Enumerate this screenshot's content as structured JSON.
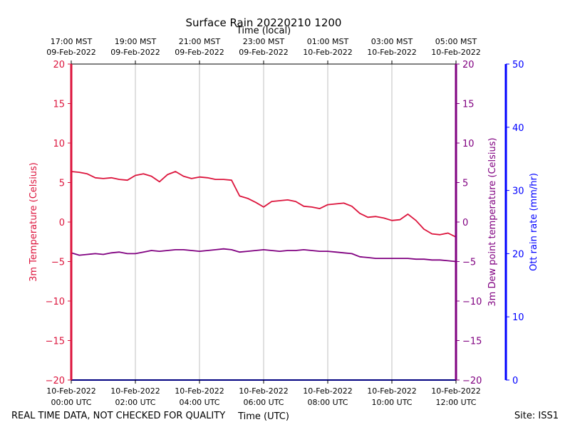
{
  "chart_data": {
    "type": "line",
    "title": "Surface Rain 20220210 1200",
    "top_axis_label": "Time (local)",
    "xlabel": "Time (UTC)",
    "footer_left": "REAL TIME DATA, NOT CHECKED FOR QUALITY",
    "footer_right": "Site: ISS1",
    "x_range_utc": [
      "10-Feb-2022 00:00",
      "10-Feb-2022 12:00"
    ],
    "grid": "vertical",
    "x_ticks_utc": [
      {
        "l1": "10-Feb-2022",
        "l2": "00:00 UTC"
      },
      {
        "l1": "10-Feb-2022",
        "l2": "02:00 UTC"
      },
      {
        "l1": "10-Feb-2022",
        "l2": "04:00 UTC"
      },
      {
        "l1": "10-Feb-2022",
        "l2": "06:00 UTC"
      },
      {
        "l1": "10-Feb-2022",
        "l2": "08:00 UTC"
      },
      {
        "l1": "10-Feb-2022",
        "l2": "10:00 UTC"
      },
      {
        "l1": "10-Feb-2022",
        "l2": "12:00 UTC"
      }
    ],
    "x_ticks_local": [
      {
        "l1": "17:00 MST",
        "l2": "09-Feb-2022"
      },
      {
        "l1": "19:00 MST",
        "l2": "09-Feb-2022"
      },
      {
        "l1": "21:00 MST",
        "l2": "09-Feb-2022"
      },
      {
        "l1": "23:00 MST",
        "l2": "09-Feb-2022"
      },
      {
        "l1": "01:00 MST",
        "l2": "10-Feb-2022"
      },
      {
        "l1": "03:00 MST",
        "l2": "10-Feb-2022"
      },
      {
        "l1": "05:00 MST",
        "l2": "10-Feb-2022"
      }
    ],
    "axes": {
      "left": {
        "label": "3m Temperature (Celsius)",
        "ylim": [
          -20,
          20
        ],
        "ticks": [
          "−20",
          "−15",
          "−10",
          "−5",
          "0",
          "5",
          "10",
          "15",
          "20"
        ],
        "color": "#dc143c"
      },
      "right1": {
        "label": "3m Dew point temperature (Celsius)",
        "ylim": [
          -20,
          20
        ],
        "ticks": [
          "−20",
          "−15",
          "−10",
          "−5",
          "0",
          "5",
          "10",
          "15",
          "20"
        ],
        "color": "#800080"
      },
      "right2": {
        "label": "Ott rain rate (mm/hr)",
        "ylim": [
          0,
          50
        ],
        "ticks": [
          "0",
          "10",
          "20",
          "30",
          "40",
          "50"
        ],
        "color": "#0000ff"
      }
    },
    "series": [
      {
        "axis": "left",
        "color": "#dc143c",
        "x_hours_utc": [
          0,
          0.25,
          0.5,
          0.75,
          1.0,
          1.25,
          1.5,
          1.75,
          2.0,
          2.25,
          2.5,
          2.75,
          3.0,
          3.25,
          3.5,
          3.75,
          4.0,
          4.25,
          4.5,
          4.75,
          5.0,
          5.25,
          5.5,
          5.75,
          6.0,
          6.25,
          6.5,
          6.75,
          7.0,
          7.25,
          7.5,
          7.75,
          8.0,
          8.25,
          8.5,
          8.75,
          9.0,
          9.25,
          9.5,
          9.75,
          10.0,
          10.25,
          10.5,
          10.75,
          11.0,
          11.25,
          11.5,
          11.75,
          12.0
        ],
        "y": [
          6.4,
          6.3,
          6.1,
          5.6,
          5.5,
          5.6,
          5.4,
          5.3,
          5.9,
          6.1,
          5.8,
          5.1,
          6.0,
          6.4,
          5.8,
          5.5,
          5.7,
          5.6,
          5.4,
          5.4,
          5.3,
          3.3,
          3.0,
          2.5,
          1.9,
          2.6,
          2.7,
          2.8,
          2.6,
          2.0,
          1.9,
          1.7,
          2.2,
          2.3,
          2.4,
          2.0,
          1.1,
          0.6,
          0.7,
          0.5,
          0.2,
          0.3,
          1.0,
          0.2,
          -0.9,
          -1.5,
          -1.6,
          -1.4,
          -1.9
        ]
      },
      {
        "axis": "right1",
        "color": "#800080",
        "x_hours_utc": [
          0,
          0.25,
          0.5,
          0.75,
          1.0,
          1.25,
          1.5,
          1.75,
          2.0,
          2.25,
          2.5,
          2.75,
          3.0,
          3.25,
          3.5,
          3.75,
          4.0,
          4.25,
          4.5,
          4.75,
          5.0,
          5.25,
          5.5,
          5.75,
          6.0,
          6.25,
          6.5,
          6.75,
          7.0,
          7.25,
          7.5,
          7.75,
          8.0,
          8.25,
          8.5,
          8.75,
          9.0,
          9.25,
          9.5,
          9.75,
          10.0,
          10.25,
          10.5,
          10.75,
          11.0,
          11.25,
          11.5,
          11.75,
          12.0
        ],
        "y": [
          -3.9,
          -4.2,
          -4.1,
          -4.0,
          -4.1,
          -3.9,
          -3.8,
          -4.0,
          -4.0,
          -3.8,
          -3.6,
          -3.7,
          -3.6,
          -3.5,
          -3.5,
          -3.6,
          -3.7,
          -3.6,
          -3.5,
          -3.4,
          -3.5,
          -3.8,
          -3.7,
          -3.6,
          -3.5,
          -3.6,
          -3.7,
          -3.6,
          -3.6,
          -3.5,
          -3.6,
          -3.7,
          -3.7,
          -3.8,
          -3.9,
          -4.0,
          -4.4,
          -4.5,
          -4.6,
          -4.6,
          -4.6,
          -4.6,
          -4.6,
          -4.7,
          -4.7,
          -4.8,
          -4.8,
          -4.9,
          -5.0
        ]
      },
      {
        "axis": "right2",
        "color": "#0000ff",
        "x_hours_utc": [
          0,
          12
        ],
        "y": [
          0,
          0
        ]
      }
    ]
  }
}
